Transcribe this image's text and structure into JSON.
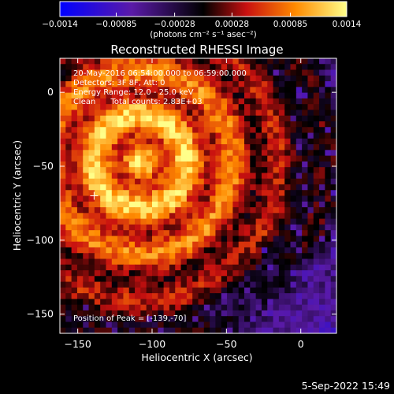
{
  "chart_data": {
    "type": "heatmap",
    "title": "Reconstructed RHESSI Image",
    "xlabel": "Heliocentric X (arcsec)",
    "ylabel": "Heliocentric Y (arcsec)",
    "xlim": [
      -162,
      24
    ],
    "ylim": [
      -163,
      23
    ],
    "x_ticks": [
      {
        "value": -150,
        "label": "−150"
      },
      {
        "value": -100,
        "label": "−100"
      },
      {
        "value": -50,
        "label": "−50"
      },
      {
        "value": 0,
        "label": "0"
      }
    ],
    "y_ticks": [
      {
        "value": 0,
        "label": "0"
      },
      {
        "value": -50,
        "label": "−50"
      },
      {
        "value": -100,
        "label": "−100"
      },
      {
        "value": -150,
        "label": "−150"
      }
    ],
    "colorbar": {
      "range": [
        -0.0014,
        0.0014
      ],
      "ticks": [
        {
          "value": -0.0014,
          "label": "−0.0014"
        },
        {
          "value": -0.00085,
          "label": "−0.00085"
        },
        {
          "value": -0.00028,
          "label": "−0.00028"
        },
        {
          "value": 0.00028,
          "label": "0.00028"
        },
        {
          "value": 0.00085,
          "label": "0.00085"
        },
        {
          "value": 0.0014,
          "label": "0.0014"
        }
      ],
      "units_label": "(photons cm⁻² s⁻¹ asec⁻²)"
    },
    "peak": [
      -139,
      -70
    ],
    "info_lines": [
      "20-May-2016 06:54:00.000 to 06:59:00.000",
      "Detectors: 3F 8F, Att: 0",
      "Energy Range: 12.0 - 25.0 keV",
      "Clean      Total counts: 2.83E+03"
    ],
    "peak_text": "Position of Peak = [-139,-70]",
    "date_stamp": "5-Sep-2022 15:49"
  }
}
